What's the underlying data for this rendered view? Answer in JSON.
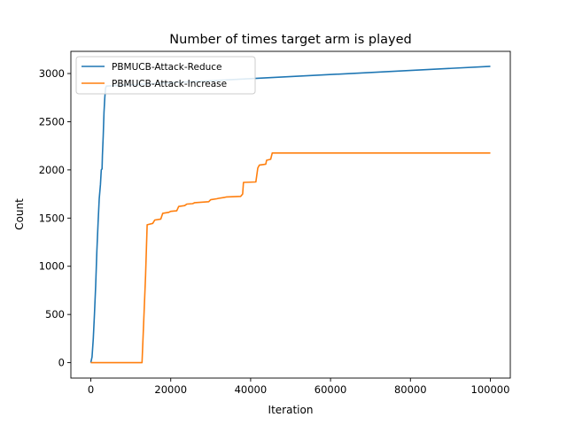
{
  "chart_data": {
    "type": "line",
    "title": "Number of times target arm is played",
    "xlabel": "Iteration",
    "ylabel": "Count",
    "xlim": [
      -5000,
      105000
    ],
    "ylim": [
      -160,
      3230
    ],
    "x_ticks": [
      0,
      20000,
      40000,
      60000,
      80000,
      100000
    ],
    "x_tick_labels": [
      "0",
      "20000",
      "40000",
      "60000",
      "80000",
      "100000"
    ],
    "y_ticks": [
      0,
      500,
      1000,
      1500,
      2000,
      2500,
      3000
    ],
    "y_tick_labels": [
      "0",
      "500",
      "1000",
      "1500",
      "2000",
      "2500",
      "3000"
    ],
    "grid": false,
    "legend_position": "top-left",
    "series": [
      {
        "name": "PBMUCB-Attack-Reduce",
        "color": "#1f77b4",
        "points": [
          [
            0,
            0
          ],
          [
            300,
            60
          ],
          [
            600,
            250
          ],
          [
            900,
            500
          ],
          [
            1200,
            800
          ],
          [
            1500,
            1150
          ],
          [
            1800,
            1450
          ],
          [
            2100,
            1700
          ],
          [
            2400,
            1850
          ],
          [
            2600,
            2000
          ],
          [
            2800,
            2010
          ],
          [
            2900,
            2150
          ],
          [
            3100,
            2350
          ],
          [
            3300,
            2600
          ],
          [
            3500,
            2750
          ],
          [
            3700,
            2850
          ],
          [
            3900,
            2870
          ],
          [
            100000,
            3075
          ]
        ]
      },
      {
        "name": "PBMUCB-Attack-Increase",
        "color": "#ff7f0e",
        "points": [
          [
            0,
            0
          ],
          [
            12800,
            0
          ],
          [
            13200,
            400
          ],
          [
            13700,
            900
          ],
          [
            14100,
            1430
          ],
          [
            15500,
            1445
          ],
          [
            16000,
            1480
          ],
          [
            17500,
            1490
          ],
          [
            18000,
            1550
          ],
          [
            19500,
            1560
          ],
          [
            20000,
            1570
          ],
          [
            21500,
            1575
          ],
          [
            22000,
            1620
          ],
          [
            23500,
            1630
          ],
          [
            24000,
            1645
          ],
          [
            25500,
            1650
          ],
          [
            26000,
            1660
          ],
          [
            29500,
            1670
          ],
          [
            30000,
            1690
          ],
          [
            31500,
            1700
          ],
          [
            32000,
            1705
          ],
          [
            33500,
            1715
          ],
          [
            34000,
            1720
          ],
          [
            37500,
            1725
          ],
          [
            38000,
            1750
          ],
          [
            38200,
            1870
          ],
          [
            41300,
            1875
          ],
          [
            41800,
            2020
          ],
          [
            42200,
            2050
          ],
          [
            43800,
            2060
          ],
          [
            44000,
            2100
          ],
          [
            45000,
            2110
          ],
          [
            45400,
            2175
          ],
          [
            100000,
            2175
          ]
        ]
      }
    ]
  }
}
